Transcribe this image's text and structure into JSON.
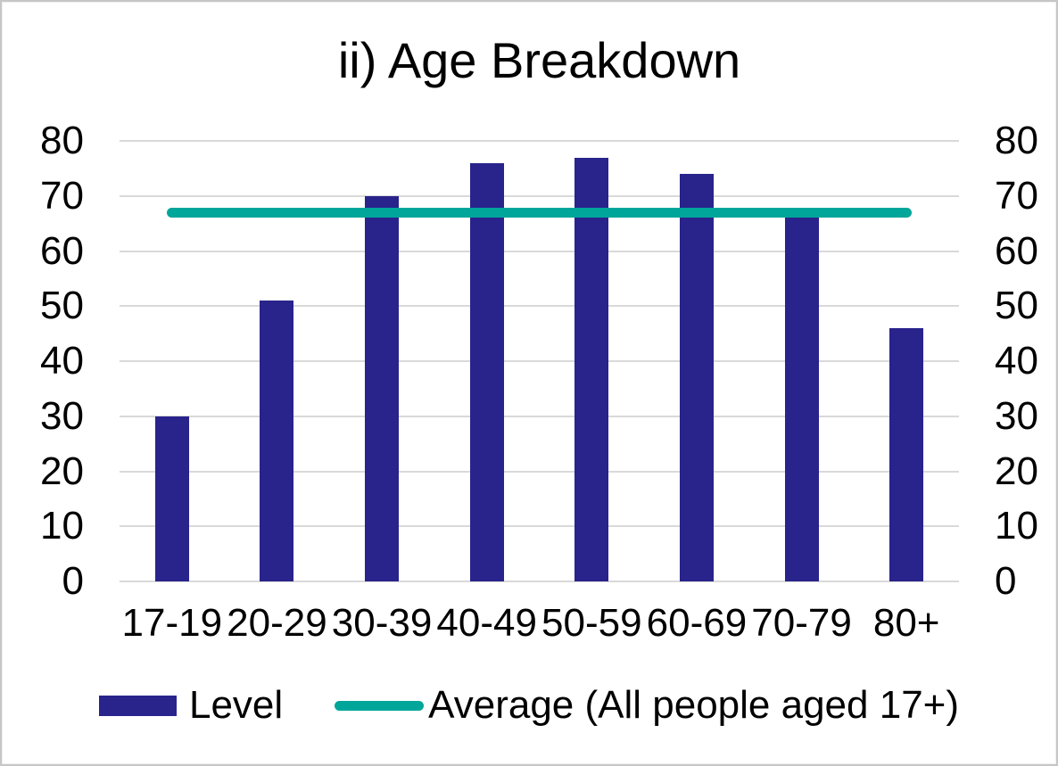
{
  "chart_data": {
    "type": "bar",
    "title": "ii) Age Breakdown",
    "categories": [
      "17-19",
      "20-29",
      "30-39",
      "40-49",
      "50-59",
      "60-69",
      "70-79",
      "80+"
    ],
    "series": [
      {
        "name": "Level",
        "type": "bar",
        "color": "#29238C",
        "values": [
          30,
          51,
          70,
          76,
          77,
          74,
          66,
          46
        ]
      },
      {
        "name": "Average (All people aged 17+)",
        "type": "line",
        "color": "#00A699",
        "value": 67
      }
    ],
    "ylim": [
      0,
      80
    ],
    "yticks": [
      0,
      10,
      20,
      30,
      40,
      50,
      60,
      70,
      80
    ],
    "y_axis_sides": [
      "left",
      "right"
    ],
    "grid": true,
    "gridline_color": "#D9D9D9",
    "legend_position": "bottom"
  }
}
